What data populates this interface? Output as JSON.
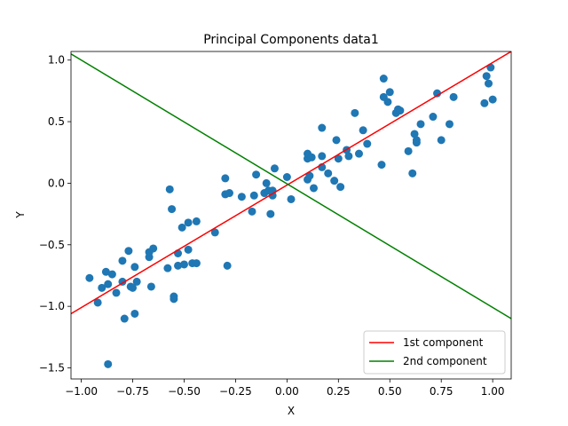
{
  "chart_data": {
    "type": "scatter",
    "title": "Principal Components data1",
    "xlabel": "X",
    "ylabel": "Y",
    "xlim": [
      -1.05,
      1.09
    ],
    "ylim": [
      -1.59,
      1.07
    ],
    "xticks": [
      -1.0,
      -0.75,
      -0.5,
      -0.25,
      0.0,
      0.25,
      0.5,
      0.75,
      1.0
    ],
    "xtick_labels": [
      "−1.00",
      "−0.75",
      "−0.50",
      "−0.25",
      "0.00",
      "0.25",
      "0.50",
      "0.75",
      "1.00"
    ],
    "yticks": [
      -1.5,
      -1.0,
      -0.5,
      0.0,
      0.5,
      1.0
    ],
    "ytick_labels": [
      "−1.5",
      "−1.0",
      "−0.5",
      "0.0",
      "0.5",
      "1.0"
    ],
    "grid": false,
    "legend_position": "lower-right",
    "points_color": "#1f77b4",
    "points": [
      [
        -0.96,
        -0.77
      ],
      [
        -0.92,
        -0.97
      ],
      [
        -0.9,
        -0.85
      ],
      [
        -0.88,
        -0.72
      ],
      [
        -0.87,
        -0.82
      ],
      [
        -0.87,
        -1.47
      ],
      [
        -0.85,
        -0.74
      ],
      [
        -0.83,
        -0.89
      ],
      [
        -0.8,
        -0.8
      ],
      [
        -0.8,
        -0.63
      ],
      [
        -0.79,
        -1.1
      ],
      [
        -0.77,
        -0.55
      ],
      [
        -0.76,
        -0.84
      ],
      [
        -0.75,
        -0.85
      ],
      [
        -0.74,
        -0.68
      ],
      [
        -0.73,
        -0.8
      ],
      [
        -0.74,
        -1.06
      ],
      [
        -0.67,
        -0.6
      ],
      [
        -0.67,
        -0.56
      ],
      [
        -0.66,
        -0.84
      ],
      [
        -0.65,
        -0.53
      ],
      [
        -0.58,
        -0.69
      ],
      [
        -0.57,
        -0.05
      ],
      [
        -0.56,
        -0.21
      ],
      [
        -0.55,
        -0.92
      ],
      [
        -0.55,
        -0.94
      ],
      [
        -0.53,
        -0.57
      ],
      [
        -0.53,
        -0.67
      ],
      [
        -0.51,
        -0.36
      ],
      [
        -0.5,
        -0.66
      ],
      [
        -0.48,
        -0.32
      ],
      [
        -0.48,
        -0.54
      ],
      [
        -0.46,
        -0.65
      ],
      [
        -0.44,
        -0.31
      ],
      [
        -0.44,
        -0.65
      ],
      [
        -0.35,
        -0.4
      ],
      [
        -0.3,
        0.04
      ],
      [
        -0.3,
        -0.09
      ],
      [
        -0.29,
        -0.67
      ],
      [
        -0.28,
        -0.08
      ],
      [
        -0.22,
        -0.11
      ],
      [
        -0.17,
        -0.23
      ],
      [
        -0.16,
        -0.1
      ],
      [
        -0.15,
        0.07
      ],
      [
        -0.11,
        -0.08
      ],
      [
        -0.1,
        -0.0
      ],
      [
        -0.09,
        -0.06
      ],
      [
        -0.08,
        -0.25
      ],
      [
        -0.07,
        -0.06
      ],
      [
        -0.07,
        -0.1
      ],
      [
        -0.06,
        0.12
      ],
      [
        -0.0,
        0.05
      ],
      [
        0.02,
        -0.13
      ],
      [
        0.1,
        0.03
      ],
      [
        0.1,
        0.2
      ],
      [
        0.1,
        0.24
      ],
      [
        0.11,
        0.06
      ],
      [
        0.12,
        0.21
      ],
      [
        0.13,
        -0.04
      ],
      [
        0.17,
        0.22
      ],
      [
        0.17,
        0.45
      ],
      [
        0.17,
        0.13
      ],
      [
        0.2,
        0.08
      ],
      [
        0.23,
        0.02
      ],
      [
        0.24,
        0.35
      ],
      [
        0.25,
        0.2
      ],
      [
        0.26,
        -0.03
      ],
      [
        0.29,
        0.27
      ],
      [
        0.3,
        0.22
      ],
      [
        0.33,
        0.57
      ],
      [
        0.35,
        0.24
      ],
      [
        0.37,
        0.43
      ],
      [
        0.39,
        0.32
      ],
      [
        0.46,
        0.15
      ],
      [
        0.47,
        0.7
      ],
      [
        0.47,
        0.85
      ],
      [
        0.49,
        0.66
      ],
      [
        0.5,
        0.74
      ],
      [
        0.53,
        0.57
      ],
      [
        0.54,
        0.6
      ],
      [
        0.55,
        0.59
      ],
      [
        0.59,
        0.26
      ],
      [
        0.61,
        0.08
      ],
      [
        0.62,
        0.4
      ],
      [
        0.63,
        0.33
      ],
      [
        0.63,
        0.35
      ],
      [
        0.65,
        0.48
      ],
      [
        0.71,
        0.54
      ],
      [
        0.73,
        0.73
      ],
      [
        0.75,
        0.35
      ],
      [
        0.79,
        0.48
      ],
      [
        0.81,
        0.7
      ],
      [
        0.96,
        0.65
      ],
      [
        0.97,
        0.87
      ],
      [
        0.98,
        0.81
      ],
      [
        0.99,
        0.94
      ],
      [
        1.0,
        0.68
      ]
    ],
    "lines": [
      {
        "name": "1st component",
        "color": "#ff0000",
        "x": [
          -1.05,
          1.09
        ],
        "y": [
          -1.06,
          1.07
        ]
      },
      {
        "name": "2nd component",
        "color": "#008000",
        "x": [
          -1.05,
          1.09
        ],
        "y": [
          1.05,
          -1.1
        ]
      }
    ]
  }
}
